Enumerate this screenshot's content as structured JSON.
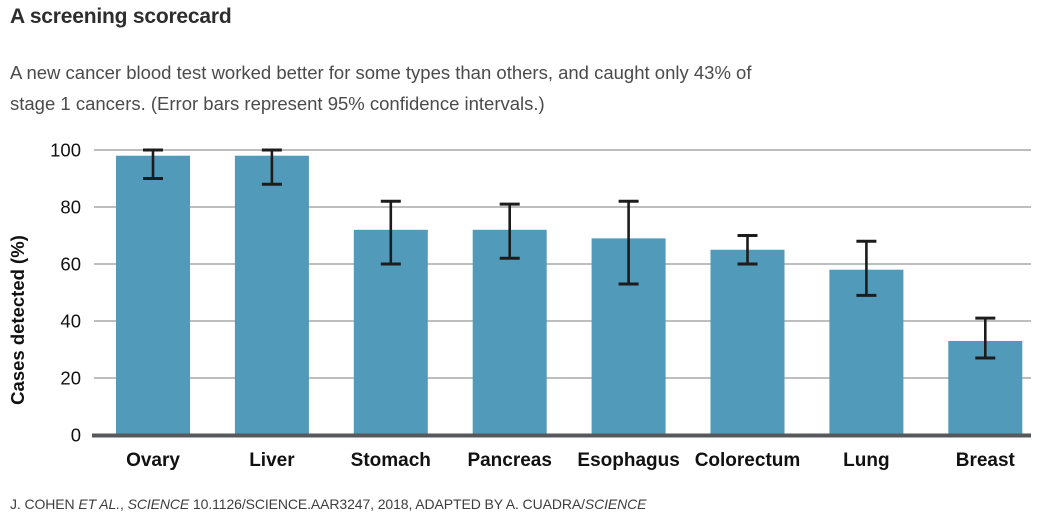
{
  "page": {
    "title": "A screening scorecard",
    "subtitle_lines": [
      "A new cancer blood test worked better for some types than others, and caught only 43% of",
      "stage 1 cancers. (Error bars represent 95% confidence intervals.)"
    ],
    "footer_segments": [
      {
        "text": "J. COHEN ",
        "italic": false
      },
      {
        "text": "ET AL.",
        "italic": true
      },
      {
        "text": ", ",
        "italic": false
      },
      {
        "text": "SCIENCE",
        "italic": true
      },
      {
        "text": " 10.1126/SCIENCE.AAR3247, 2018, ADAPTED BY A. CUADRA/",
        "italic": false
      },
      {
        "text": "SCIENCE",
        "italic": true
      }
    ]
  },
  "chart_data": {
    "type": "bar",
    "title": "A screening scorecard",
    "subtitle": "A new cancer blood test worked better for some types than others, and caught only 43% of stage 1 cancers. (Error bars represent 95% confidence intervals.)",
    "categories": [
      "Ovary",
      "Liver",
      "Stomach",
      "Pancreas",
      "Esophagus",
      "Colorectum",
      "Lung",
      "Breast"
    ],
    "values": [
      98,
      98,
      72,
      72,
      69,
      65,
      58,
      33
    ],
    "error_low": [
      90,
      88,
      60,
      62,
      53,
      60,
      49,
      27
    ],
    "error_high": [
      100,
      100,
      82,
      81,
      82,
      70,
      68,
      41
    ],
    "error_label": "95% confidence intervals",
    "xlabel": "",
    "ylabel": "Cases detected (%)",
    "ylim": [
      0,
      100
    ],
    "yticks": [
      0,
      20,
      40,
      60,
      80,
      100
    ],
    "grid": true,
    "legend": false,
    "colors": {
      "bar": "#529ab9",
      "grid": "#b4b4b4",
      "baseline": "#56585c",
      "error": "#1c1c1c",
      "title": "#2d2d2d",
      "subtitle": "#4b4b4b",
      "tick": "#111111",
      "footer": "#3e3e3e"
    }
  }
}
